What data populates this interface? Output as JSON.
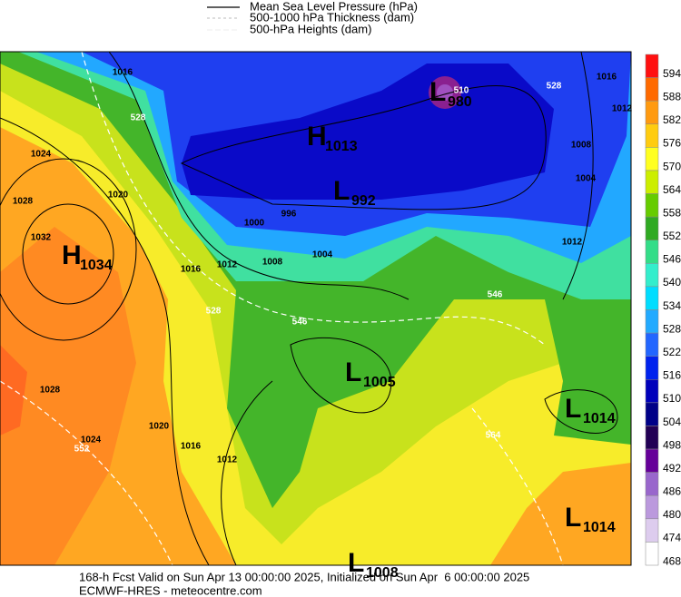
{
  "legend": [
    "Mean Sea Level Pressure (hPa)",
    "500-1000 hPa Thickness (dam)",
    "500-hPa Heights (dam)"
  ],
  "colorbar": {
    "labels": [
      "594",
      "588",
      "582",
      "576",
      "570",
      "564",
      "558",
      "552",
      "546",
      "540",
      "534",
      "528",
      "522",
      "516",
      "510",
      "504",
      "498",
      "492",
      "486",
      "480",
      "474",
      "468"
    ],
    "colors": [
      "#ff1010",
      "#ff6a00",
      "#ff9a10",
      "#ffcc10",
      "#ffff20",
      "#ccee00",
      "#66cc00",
      "#2faa22",
      "#33dd88",
      "#33eecc",
      "#00ddff",
      "#22aaff",
      "#2266ff",
      "#0022ee",
      "#0000bb",
      "#000088",
      "#220055",
      "#660099",
      "#9966cc",
      "#bb99dd",
      "#ddccee",
      "#ffffff"
    ]
  },
  "pressure_centers": [
    {
      "type": "H",
      "value": "1034"
    },
    {
      "type": "H",
      "value": "1013"
    },
    {
      "type": "L",
      "value": "980"
    },
    {
      "type": "L",
      "value": "992"
    },
    {
      "type": "L",
      "value": "1005"
    },
    {
      "type": "L",
      "value": "1014"
    },
    {
      "type": "L",
      "value": "1014"
    },
    {
      "type": "L",
      "value": "1008"
    }
  ],
  "isobar_labels": [
    "1016",
    "1020",
    "1024",
    "1028",
    "1032",
    "1016",
    "1012",
    "1008",
    "1004",
    "1000",
    "996",
    "1028",
    "1024",
    "1020",
    "1016",
    "1012",
    "1012",
    "1008",
    "1004",
    "1012",
    "1016"
  ],
  "thickness_labels": [
    "528",
    "546",
    "528",
    "546",
    "528",
    "552",
    "564",
    "510"
  ],
  "footer": [
    "168-h Fcst Valid on Sun Apr 13 00:00:00 2025, Initialized on Sun Apr  6 00:00:00 2025",
    "ECMWF-HRES - meteocentre.com"
  ]
}
